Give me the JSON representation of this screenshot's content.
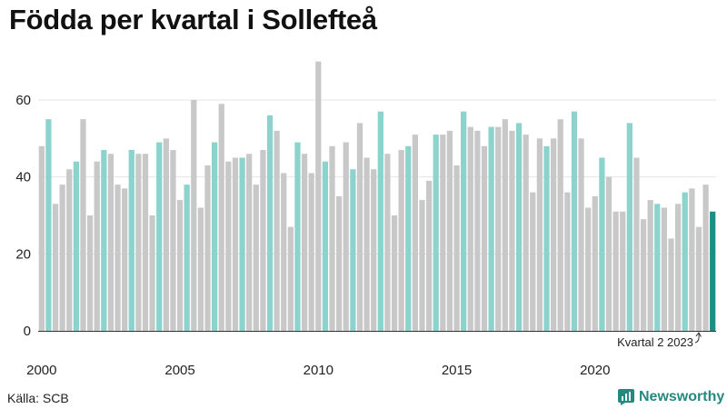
{
  "title": "Födda per kvartal i Sollefteå",
  "source": "Källa: SCB",
  "brand": "Newsworthy",
  "colors": {
    "other": "#c8c8c8",
    "q2": "#8bd3cc",
    "latest": "#1a8f85",
    "grid": "#e4e4e4",
    "axis": "#333333",
    "brand": "#24897f"
  },
  "chart_data": {
    "type": "bar",
    "title": "Födda per kvartal i Sollefteå",
    "xlabel": "",
    "ylabel": "",
    "ylim": [
      0,
      70
    ],
    "yticks": [
      0,
      20,
      40,
      60
    ],
    "xtick_labels": [
      "2000",
      "2005",
      "2010",
      "2015",
      "2020"
    ],
    "start_year": 2000,
    "quarters_per_year": 4,
    "highlight": "Kvartal 2 2023",
    "grid": true,
    "values": [
      48,
      55,
      33,
      38,
      42,
      44,
      55,
      30,
      44,
      47,
      46,
      38,
      37,
      47,
      46,
      46,
      30,
      49,
      50,
      47,
      34,
      38,
      60,
      32,
      43,
      49,
      59,
      44,
      45,
      45,
      46,
      38,
      47,
      56,
      52,
      41,
      27,
      49,
      46,
      41,
      70,
      44,
      48,
      35,
      49,
      42,
      54,
      45,
      42,
      57,
      46,
      30,
      47,
      48,
      51,
      34,
      39,
      51,
      51,
      52,
      43,
      57,
      53,
      52,
      48,
      53,
      53,
      55,
      52,
      54,
      51,
      36,
      50,
      48,
      50,
      55,
      36,
      57,
      50,
      32,
      35,
      45,
      40,
      31,
      31,
      54,
      45,
      29,
      34,
      33,
      32,
      24,
      33,
      36,
      37,
      27,
      38,
      31
    ]
  }
}
